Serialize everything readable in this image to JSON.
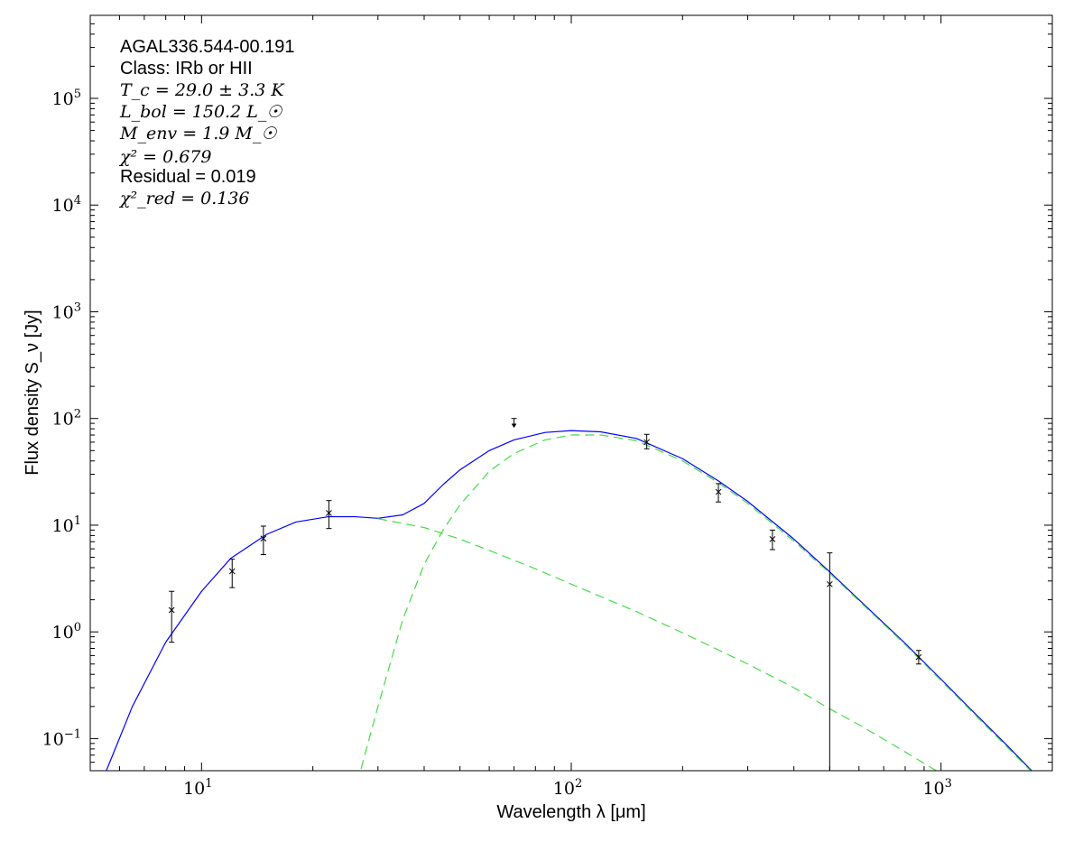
{
  "chart_data": {
    "type": "scatter",
    "title": "",
    "xlabel": "Wavelength λ [μm]",
    "ylabel": "Flux density S_ν [Jy]",
    "xscale": "log",
    "yscale": "log",
    "xlim": [
      5,
      2000
    ],
    "ylim": [
      0.05,
      600000
    ],
    "grid": false,
    "x_ticks": [
      {
        "mantissa": "10",
        "exp": "1",
        "value": 10
      },
      {
        "mantissa": "10",
        "exp": "2",
        "value": 100
      },
      {
        "mantissa": "10",
        "exp": "3",
        "value": 1000
      }
    ],
    "y_ticks": [
      {
        "mantissa": "10",
        "exp": "−1",
        "value": 0.1
      },
      {
        "mantissa": "10",
        "exp": "0",
        "value": 1
      },
      {
        "mantissa": "10",
        "exp": "1",
        "value": 10
      },
      {
        "mantissa": "10",
        "exp": "2",
        "value": 100
      },
      {
        "mantissa": "10",
        "exp": "3",
        "value": 1000
      },
      {
        "mantissa": "10",
        "exp": "4",
        "value": 10000
      },
      {
        "mantissa": "10",
        "exp": "5",
        "value": 100000
      }
    ],
    "annotations": {
      "source": "AGAL336.544-00.191",
      "class_line": "Class: IRb or HII",
      "tc_line": "T_c = 29.0 ± 3.3 K",
      "lbol_line": "L_bol = 150.2 L_☉",
      "menv_line": "M_env = 1.9 M_☉",
      "chi2_line": "χ² = 0.679",
      "residual_line": "Residual = 0.019",
      "chi2red_line": "χ²_red = 0.136"
    },
    "points": [
      {
        "x": 8.3,
        "y": 1.6,
        "y_low": 0.8,
        "y_high": 2.4
      },
      {
        "x": 12.1,
        "y": 3.7,
        "y_low": 2.6,
        "y_high": 4.8
      },
      {
        "x": 14.7,
        "y": 7.5,
        "y_low": 5.3,
        "y_high": 9.8
      },
      {
        "x": 22.1,
        "y": 13.0,
        "y_low": 9.3,
        "y_high": 17.0
      },
      {
        "x": 160,
        "y": 60,
        "y_low": 52,
        "y_high": 71
      },
      {
        "x": 250,
        "y": 20.5,
        "y_low": 16.5,
        "y_high": 24.5
      },
      {
        "x": 350,
        "y": 7.4,
        "y_low": 5.9,
        "y_high": 9.0
      },
      {
        "x": 500,
        "y": 2.8,
        "y_low": 0.03,
        "y_high": 5.5
      },
      {
        "x": 870,
        "y": 0.58,
        "y_low": 0.5,
        "y_high": 0.67
      }
    ],
    "upper_limits": [
      {
        "x": 70,
        "y": 100
      }
    ],
    "series": [
      {
        "name": "",
        "style": "solid",
        "color": "#0000ff",
        "x": [
          5.5,
          6.5,
          8,
          10,
          12,
          15,
          18,
          22,
          26,
          30,
          35,
          40,
          45,
          50,
          60,
          70,
          85,
          100,
          120,
          150,
          200,
          250,
          300,
          400,
          500,
          600,
          800,
          1000,
          1200,
          1500,
          1800
        ],
        "y": [
          0.048,
          0.2,
          0.8,
          2.4,
          4.9,
          8.2,
          10.7,
          12.0,
          12.0,
          11.6,
          12.5,
          16,
          24,
          33,
          50,
          63,
          74,
          77,
          75,
          65,
          42,
          26,
          16.7,
          7.4,
          3.65,
          2.0,
          0.78,
          0.36,
          0.19,
          0.088,
          0.046
        ]
      },
      {
        "name": "",
        "style": "dashed",
        "color": "#44dd44",
        "x": [
          27,
          30,
          35,
          40,
          45,
          50,
          60,
          70,
          85,
          100,
          120,
          150,
          200,
          250,
          300,
          400,
          500,
          600,
          800,
          1000,
          1200,
          1500,
          1800
        ],
        "y": [
          0.052,
          0.2,
          1.3,
          4.3,
          9.0,
          15.5,
          32,
          47,
          63,
          70,
          70,
          62,
          40,
          25,
          16,
          7.1,
          3.55,
          1.95,
          0.76,
          0.35,
          0.185,
          0.085,
          0.045
        ]
      },
      {
        "name": "",
        "style": "dashed",
        "color": "#44dd44",
        "x": [
          30,
          40,
          50,
          60,
          80,
          100,
          150,
          200,
          300,
          400,
          500,
          600,
          800,
          1000
        ],
        "y": [
          11.5,
          9.5,
          7.4,
          5.8,
          3.9,
          2.8,
          1.55,
          0.98,
          0.5,
          0.3,
          0.19,
          0.135,
          0.075,
          0.047
        ]
      }
    ]
  }
}
